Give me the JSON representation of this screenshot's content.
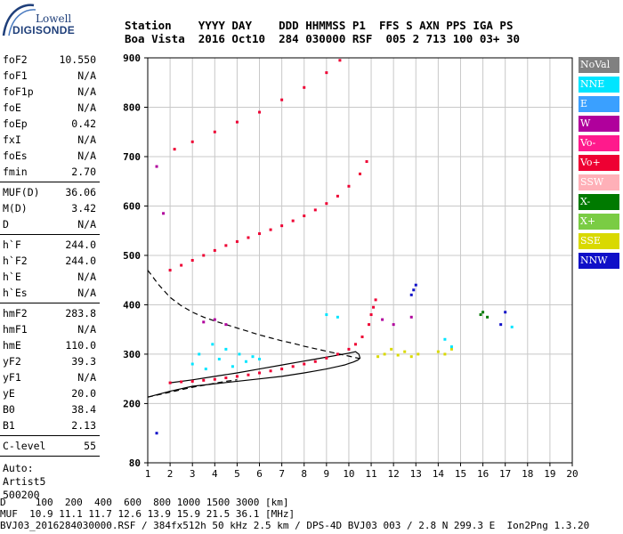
{
  "logo": {
    "top_text": "Lowell",
    "bottom_text": "DIGISONDE"
  },
  "header": {
    "labels_line": "Station    YYYY DAY    DDD HHMMSS P1  FFS S AXN PPS IGA PS",
    "values_line": "Boa Vista  2016 Oct10  284 030000 RSF  005 2 713 100 03+ 30"
  },
  "params": {
    "group1": [
      {
        "name": "foF2",
        "value": "10.550"
      },
      {
        "name": "foF1",
        "value": "N/A"
      },
      {
        "name": "foF1p",
        "value": "N/A"
      },
      {
        "name": "foE",
        "value": "N/A"
      },
      {
        "name": "foEp",
        "value": "0.42"
      },
      {
        "name": "fxI",
        "value": "N/A"
      },
      {
        "name": "foEs",
        "value": "N/A"
      },
      {
        "name": "fmin",
        "value": "2.70"
      }
    ],
    "group2": [
      {
        "name": "MUF(D)",
        "value": "36.06"
      },
      {
        "name": "M(D)",
        "value": "3.42"
      },
      {
        "name": "D",
        "value": "N/A"
      }
    ],
    "group3": [
      {
        "name": "h`F",
        "value": "244.0"
      },
      {
        "name": "h`F2",
        "value": "244.0"
      },
      {
        "name": "h`E",
        "value": "N/A"
      },
      {
        "name": "h`Es",
        "value": "N/A"
      }
    ],
    "group4": [
      {
        "name": "hmF2",
        "value": "283.8"
      },
      {
        "name": "hmF1",
        "value": "N/A"
      },
      {
        "name": "hmE",
        "value": "110.0"
      },
      {
        "name": "yF2",
        "value": "39.3"
      },
      {
        "name": "yF1",
        "value": "N/A"
      },
      {
        "name": "yE",
        "value": "20.0"
      },
      {
        "name": "B0",
        "value": "38.4"
      },
      {
        "name": "B1",
        "value": "2.13"
      }
    ],
    "group5": [
      {
        "name": "C-level",
        "value": "55"
      }
    ],
    "auto_lines": [
      "Auto:",
      "Artist5",
      "500200"
    ]
  },
  "legend": [
    {
      "label": "NoVal",
      "color": "#808080"
    },
    {
      "label": "NNE",
      "color": "#00e5ff"
    },
    {
      "label": "E",
      "color": "#3aa0ff"
    },
    {
      "label": "W",
      "color": "#b0009c"
    },
    {
      "label": "Vo-",
      "color": "#ff1a8c"
    },
    {
      "label": "Vo+",
      "color": "#ee0033"
    },
    {
      "label": "SSW",
      "color": "#ffb0b8"
    },
    {
      "label": "X-",
      "color": "#007a00"
    },
    {
      "label": "X+",
      "color": "#7acc44"
    },
    {
      "label": "SSE",
      "color": "#d9d900"
    },
    {
      "label": "NNW",
      "color": "#1010c8"
    }
  ],
  "bottom": {
    "line1": "D     100  200  400  600  800 1000 1500 3000 [km]",
    "line2": "MUF  10.9 11.1 11.7 12.6 13.9 15.9 21.5 36.1 [MHz]",
    "line3": "BVJ03_2016284030000.RSF / 384fx512h 50 kHz 2.5 km / DPS-4D BVJ03 003 / 2.8 N 299.3 E  Ion2Png 1.3.20"
  },
  "chart_data": {
    "type": "scatter",
    "xlim": [
      1,
      20
    ],
    "ylim": [
      80,
      900
    ],
    "x_ticks": [
      "1",
      "2",
      "3",
      "4",
      "5",
      "6",
      "7",
      "8",
      "9",
      "10",
      "11",
      "12",
      "13",
      "14",
      "15",
      "16",
      "17",
      "18",
      "19",
      "20"
    ],
    "y_ticks": [
      "80",
      "200",
      "300",
      "400",
      "500",
      "600",
      "700",
      "800",
      "900"
    ],
    "grid": true,
    "series": [
      {
        "name": "Vo+",
        "color": "#ee0033",
        "x": [
          2.0,
          2.5,
          3.0,
          3.5,
          4.0,
          4.5,
          5.0,
          5.5,
          6.0,
          6.5,
          7.0,
          7.5,
          8.0,
          8.5,
          9.0,
          9.5,
          10.0,
          10.3,
          10.6,
          10.9,
          11.0,
          11.1,
          11.2
        ],
        "y": [
          242,
          244,
          245,
          247,
          249,
          252,
          255,
          258,
          262,
          266,
          270,
          275,
          280,
          285,
          292,
          300,
          310,
          320,
          335,
          360,
          380,
          395,
          410
        ]
      },
      {
        "name": "Vo+",
        "color": "#ee0033",
        "x": [
          2.0,
          2.5,
          3.0,
          3.5,
          4.0,
          4.5,
          5.0,
          5.5,
          6.0,
          6.5,
          7.0,
          7.5,
          8.0,
          8.5,
          9.0,
          9.5,
          10.0,
          10.5,
          10.8
        ],
        "y": [
          470,
          480,
          490,
          500,
          510,
          520,
          528,
          536,
          544,
          552,
          560,
          570,
          580,
          592,
          605,
          620,
          640,
          665,
          690
        ]
      },
      {
        "name": "Vo+",
        "color": "#ee0033",
        "x": [
          2.2,
          3.0,
          4.0,
          5.0,
          6.0,
          7.0,
          8.0,
          9.0,
          9.6
        ],
        "y": [
          715,
          730,
          750,
          770,
          790,
          815,
          840,
          870,
          895
        ]
      },
      {
        "name": "SSE",
        "color": "#d9d900",
        "x": [
          11.3,
          11.6,
          11.9,
          12.2,
          12.5,
          12.8,
          13.1,
          14.0,
          14.3,
          14.6
        ],
        "y": [
          295,
          300,
          310,
          298,
          305,
          295,
          300,
          305,
          300,
          310
        ]
      },
      {
        "name": "NNE",
        "color": "#00e5ff",
        "x": [
          3.0,
          3.3,
          3.6,
          3.9,
          4.2,
          4.5,
          4.8,
          5.1,
          5.4,
          5.7,
          6.0,
          9.0,
          9.5,
          14.3,
          14.6,
          17.3
        ],
        "y": [
          280,
          300,
          270,
          320,
          290,
          310,
          275,
          300,
          285,
          295,
          290,
          380,
          375,
          330,
          315,
          355
        ]
      },
      {
        "name": "W",
        "color": "#b0009c",
        "x": [
          1.4,
          1.7,
          3.5,
          4.0,
          4.5,
          11.5,
          12.0,
          12.8
        ],
        "y": [
          680,
          585,
          365,
          370,
          360,
          370,
          360,
          375
        ]
      },
      {
        "name": "X-",
        "color": "#007a00",
        "x": [
          15.9,
          16.0,
          16.2
        ],
        "y": [
          380,
          385,
          375
        ]
      },
      {
        "name": "NNW",
        "color": "#1010c8",
        "x": [
          1.4,
          12.8,
          12.9,
          13.0,
          16.8,
          17.0
        ],
        "y": [
          140,
          420,
          430,
          440,
          360,
          385
        ]
      }
    ],
    "curves": [
      {
        "name": "dashed",
        "style": "dashed",
        "color": "#000000",
        "x": [
          1.0,
          1.5,
          2.0,
          2.5,
          3.0,
          3.5,
          4.0,
          4.5,
          5.0,
          5.5,
          6.0,
          6.5,
          7.0,
          7.5,
          8.0,
          8.5,
          9.0,
          9.5,
          10.0,
          10.5
        ],
        "y": [
          470,
          440,
          415,
          398,
          385,
          375,
          367,
          360,
          353,
          346,
          339,
          333,
          327,
          322,
          316,
          311,
          306,
          301,
          296,
          291
        ]
      },
      {
        "name": "dashed-low",
        "style": "dashed",
        "color": "#000000",
        "x": [
          1.0,
          1.5,
          2.0,
          2.5,
          3.0,
          3.5,
          4.0,
          4.5,
          5.0
        ],
        "y": [
          213,
          218,
          223,
          228,
          233,
          237,
          241,
          245,
          248
        ]
      },
      {
        "name": "profile",
        "style": "solid",
        "color": "#000000",
        "x": [
          1.0,
          2.0,
          3.0,
          4.0,
          5.0,
          6.0,
          7.0,
          8.0,
          8.5,
          9.0,
          9.5,
          9.8,
          10.0,
          10.2,
          10.4,
          10.5,
          10.45,
          10.3,
          10.0,
          9.5,
          9.0,
          8.5,
          8.0,
          7.0,
          6.0,
          5.0,
          4.0,
          3.0,
          2.0
        ],
        "y": [
          213,
          225,
          235,
          240,
          245,
          250,
          255,
          262,
          266,
          270,
          275,
          278,
          281,
          284,
          288,
          292,
          300,
          305,
          302,
          298,
          294,
          290,
          286,
          278,
          270,
          262,
          255,
          248,
          242
        ]
      }
    ]
  }
}
